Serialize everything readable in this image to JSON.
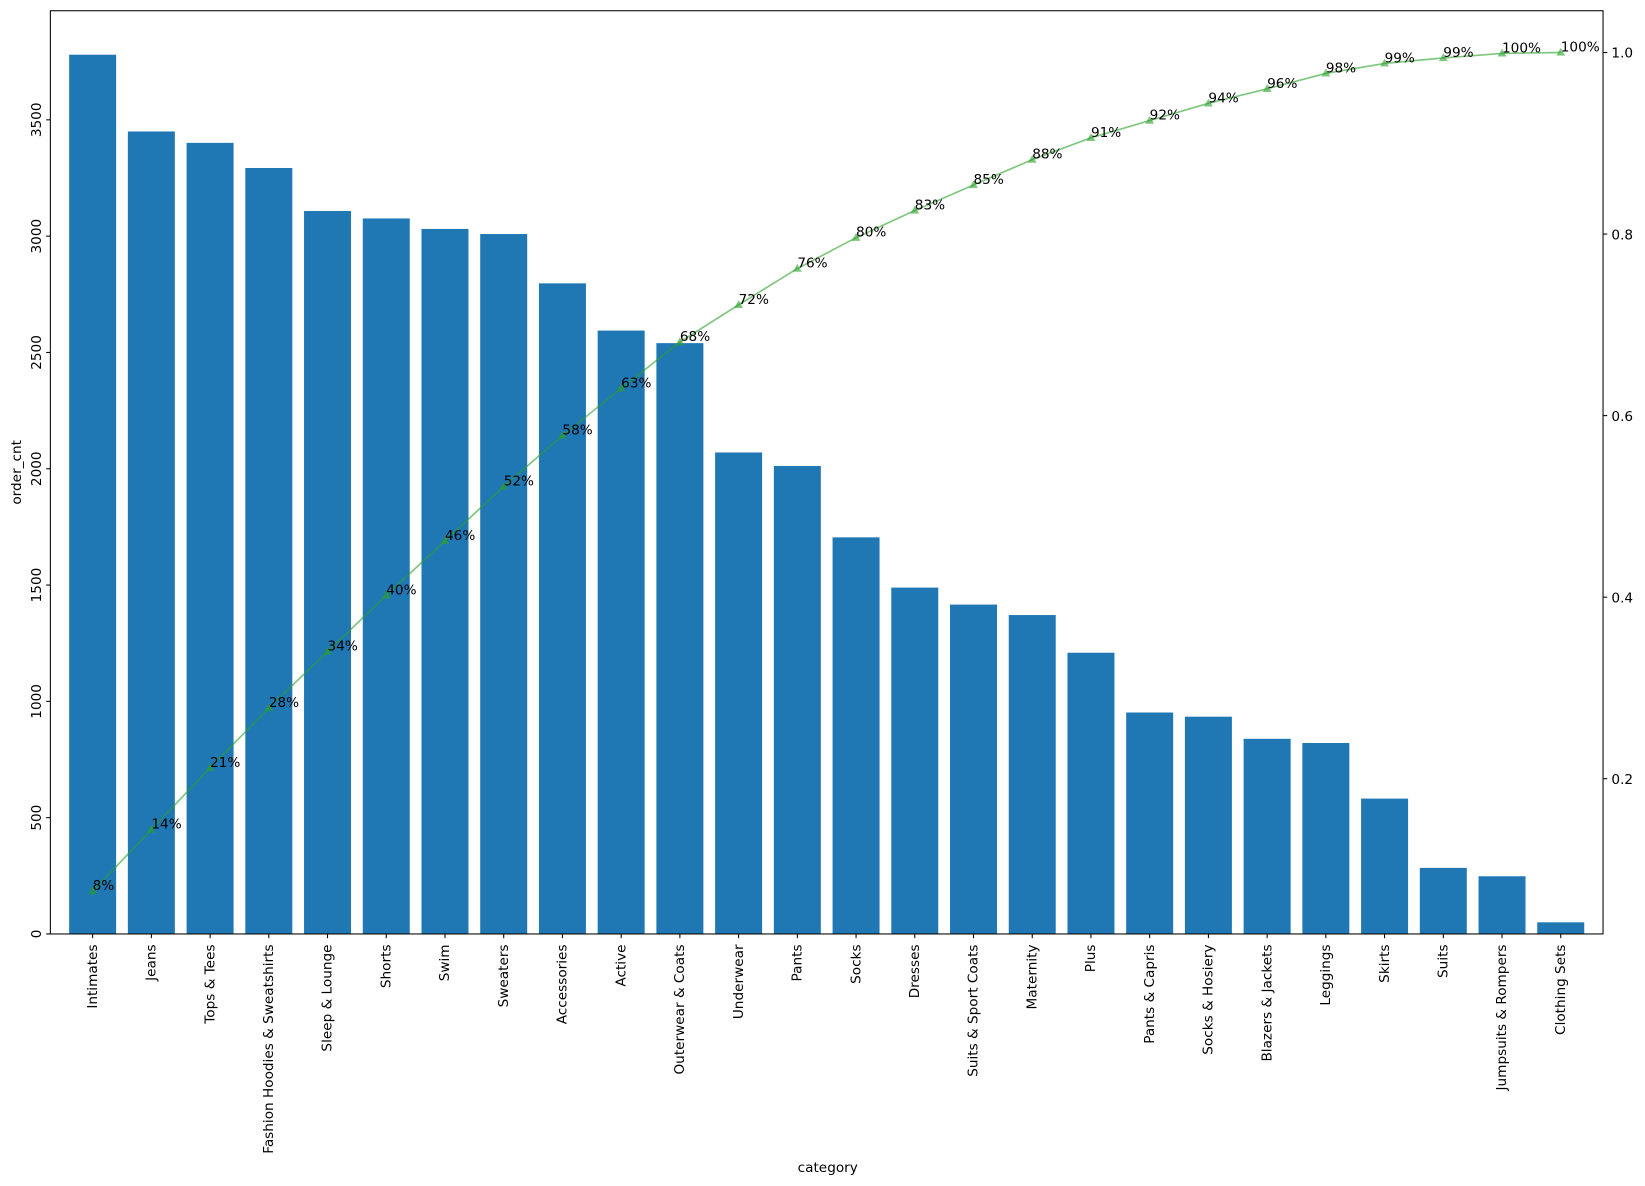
{
  "chart_data": {
    "type": "pareto",
    "x_label": "category",
    "y_label": "order_cnt",
    "categories": [
      "Intimates",
      "Jeans",
      "Tops & Tees",
      "Fashion Hoodies & Sweatshirts",
      "Sleep & Lounge",
      "Shorts",
      "Swim",
      "Sweaters",
      "Accessories",
      "Active",
      "Outerwear & Coats",
      "Underwear",
      "Pants",
      "Socks",
      "Dresses",
      "Suits & Sport Coats",
      "Maternity",
      "Plus",
      "Pants & Capris",
      "Socks & Hosiery",
      "Blazers & Jackets",
      "Leggings",
      "Skirts",
      "Suits",
      "Jumpsuits & Rompers",
      "Clothing Sets"
    ],
    "series": [
      {
        "color": "#1f77b4",
        "values": [
          3780,
          3450,
          3401,
          3293,
          3108,
          3076,
          3031,
          3009,
          2797,
          2594,
          2540,
          2070,
          2012,
          1705,
          1489,
          1416,
          1371,
          1209,
          952,
          934,
          839,
          821,
          582,
          284,
          248,
          50
        ]
      },
      {
        "color": "#2ca02c",
        "axis": "y2",
        "marker": "triangle",
        "values": [
          0.076,
          0.144,
          0.212,
          0.278,
          0.34,
          0.402,
          0.462,
          0.522,
          0.578,
          0.63,
          0.681,
          0.722,
          0.762,
          0.796,
          0.826,
          0.854,
          0.882,
          0.906,
          0.925,
          0.944,
          0.96,
          0.977,
          0.988,
          0.994,
          0.999,
          1.0
        ],
        "value_labels": [
          "8%",
          "14%",
          "21%",
          "28%",
          "34%",
          "40%",
          "46%",
          "52%",
          "58%",
          "63%",
          "68%",
          "72%",
          "76%",
          "80%",
          "83%",
          "85%",
          "88%",
          "91%",
          "92%",
          "94%",
          "96%",
          "98%",
          "99%",
          "99%",
          "100%",
          "100%"
        ]
      }
    ],
    "ylim": [
      0,
      3969
    ],
    "yticks": [
      0,
      500,
      1000,
      1500,
      2000,
      2500,
      3000,
      3500
    ],
    "y2lim": [
      0.029,
      1.046
    ],
    "y2ticks": [
      0.2,
      0.4,
      0.6,
      0.8,
      {
        "value": 1.0,
        "label": "1.0"
      }
    ]
  }
}
